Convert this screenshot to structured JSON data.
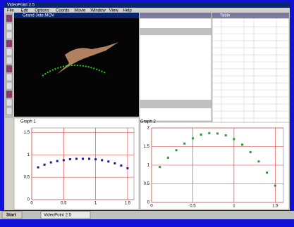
{
  "window": {
    "title": "VideoPoint 2.5",
    "menu": [
      "File",
      "Edit",
      "Options",
      "Coords",
      "Movie",
      "Window",
      "View",
      "Help"
    ]
  },
  "video": {
    "title": "Grand Jete.MOV"
  },
  "table": {
    "title": "Table"
  },
  "graphs": [
    {
      "title": "Graph 1",
      "xlim": [
        0,
        1.6
      ],
      "ylim": [
        0,
        1.6
      ],
      "xticks": [
        0,
        0.5,
        1,
        1.5
      ],
      "yticks": [
        0,
        0.5,
        1,
        1.5
      ],
      "x": [
        0.1,
        0.2,
        0.3,
        0.4,
        0.5,
        0.6,
        0.7,
        0.8,
        0.9,
        1.0,
        1.1,
        1.2,
        1.3,
        1.4,
        1.5
      ],
      "y": [
        0.72,
        0.78,
        0.83,
        0.86,
        0.88,
        0.9,
        0.91,
        0.91,
        0.91,
        0.9,
        0.88,
        0.85,
        0.81,
        0.76,
        0.7
      ]
    },
    {
      "title": "Graph 2",
      "xlim": [
        0,
        1.6
      ],
      "ylim": [
        0,
        2
      ],
      "xticks": [
        0,
        0.5,
        1,
        1.5
      ],
      "yticks": [
        0,
        0.5,
        1,
        1.5,
        2
      ],
      "x": [
        0.1,
        0.2,
        0.3,
        0.4,
        0.5,
        0.6,
        0.7,
        0.8,
        0.9,
        1.0,
        1.1,
        1.2,
        1.3,
        1.4,
        1.5
      ],
      "y": [
        0.95,
        1.2,
        1.4,
        1.58,
        1.72,
        1.82,
        1.86,
        1.85,
        1.8,
        1.7,
        1.55,
        1.35,
        1.1,
        0.8,
        0.45
      ]
    }
  ],
  "taskbar": {
    "start": "Start",
    "task": "VideoPoint 2.5"
  }
}
